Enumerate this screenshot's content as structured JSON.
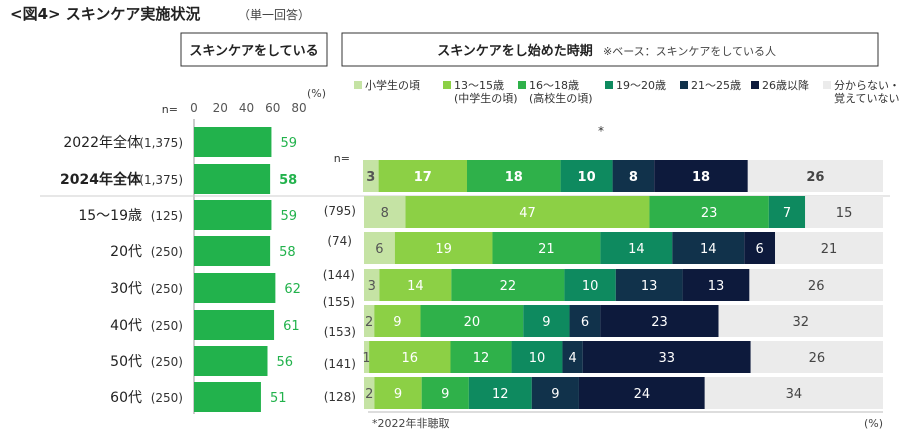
{
  "title": "<図4> スキンケア実施状況",
  "subtitle": "（単一回答）",
  "left_header": "スキンケアをしている",
  "right_header": "スキンケアをし始めた時期",
  "right_header_note": "※ベース：スキンケアをしている人",
  "n_label": "n=",
  "percent_unit": "(%)",
  "asterisk": "*",
  "footnote": "*2022年非聴取",
  "colors": {
    "bar_left": "#22b24c",
    "separator": "#cfcfcf"
  },
  "chart_data": [
    {
      "type": "bar",
      "orientation": "horizontal",
      "title": "スキンケアをしている",
      "xlim": [
        0,
        80
      ],
      "ticks": [
        "0",
        "20",
        "40",
        "60",
        "80"
      ],
      "rows": [
        {
          "label": "2022年全体",
          "n": "(1,375)",
          "value": 59,
          "bold": false
        },
        {
          "label": "2024年全体",
          "n": "(1,375)",
          "value": 58,
          "bold": true
        },
        {
          "label": "15～19歳",
          "n": "(125)",
          "value": 59,
          "bold": false
        },
        {
          "label": "20代",
          "n": "(250)",
          "value": 58,
          "bold": false
        },
        {
          "label": "30代",
          "n": "(250)",
          "value": 62,
          "bold": false
        },
        {
          "label": "40代",
          "n": "(250)",
          "value": 61,
          "bold": false
        },
        {
          "label": "50代",
          "n": "(250)",
          "value": 56,
          "bold": false
        },
        {
          "label": "60代",
          "n": "(250)",
          "value": 51,
          "bold": false
        }
      ]
    },
    {
      "type": "bar",
      "stacked": true,
      "orientation": "horizontal",
      "title": "スキンケアをし始めた時期",
      "xlim": [
        0,
        100
      ],
      "series": [
        {
          "name": "小学生の頃",
          "color": "#c5e3a4",
          "text_color": "#555555"
        },
        {
          "name": "13～15歳\n(中学生の頃)",
          "color": "#8cd045",
          "text_color": "#ffffff"
        },
        {
          "name": "16～18歳\n(高校生の頃)",
          "color": "#2fb14a",
          "text_color": "#ffffff"
        },
        {
          "name": "19～20歳",
          "color": "#0e8a5f",
          "text_color": "#ffffff"
        },
        {
          "name": "21～25歳",
          "color": "#11324b",
          "text_color": "#ffffff"
        },
        {
          "name": "26歳以降",
          "color": "#0d1a3c",
          "text_color": "#ffffff"
        },
        {
          "name": "分からない・\n覚えていない",
          "color": "#ebebeb",
          "text_color": "#444444"
        }
      ],
      "rows": [
        {
          "n": "",
          "values": [
            3,
            17,
            18,
            10,
            8,
            18,
            26
          ]
        },
        {
          "n": "(795)",
          "values": [
            8,
            47,
            23,
            7,
            0,
            0,
            15
          ]
        },
        {
          "n": "(74)",
          "values": [
            6,
            19,
            21,
            14,
            14,
            6,
            21
          ]
        },
        {
          "n": "(144)",
          "values": [
            3,
            14,
            22,
            10,
            13,
            13,
            26
          ]
        },
        {
          "n": "(155)",
          "values": [
            2,
            9,
            20,
            9,
            6,
            23,
            32
          ]
        },
        {
          "n": "(153)",
          "values": [
            1,
            16,
            12,
            10,
            4,
            33,
            26
          ]
        },
        {
          "n": "(141)",
          "values": [
            2,
            9,
            9,
            12,
            9,
            24,
            34
          ]
        }
      ],
      "extra_n_labels": [
        "(128)"
      ]
    }
  ]
}
